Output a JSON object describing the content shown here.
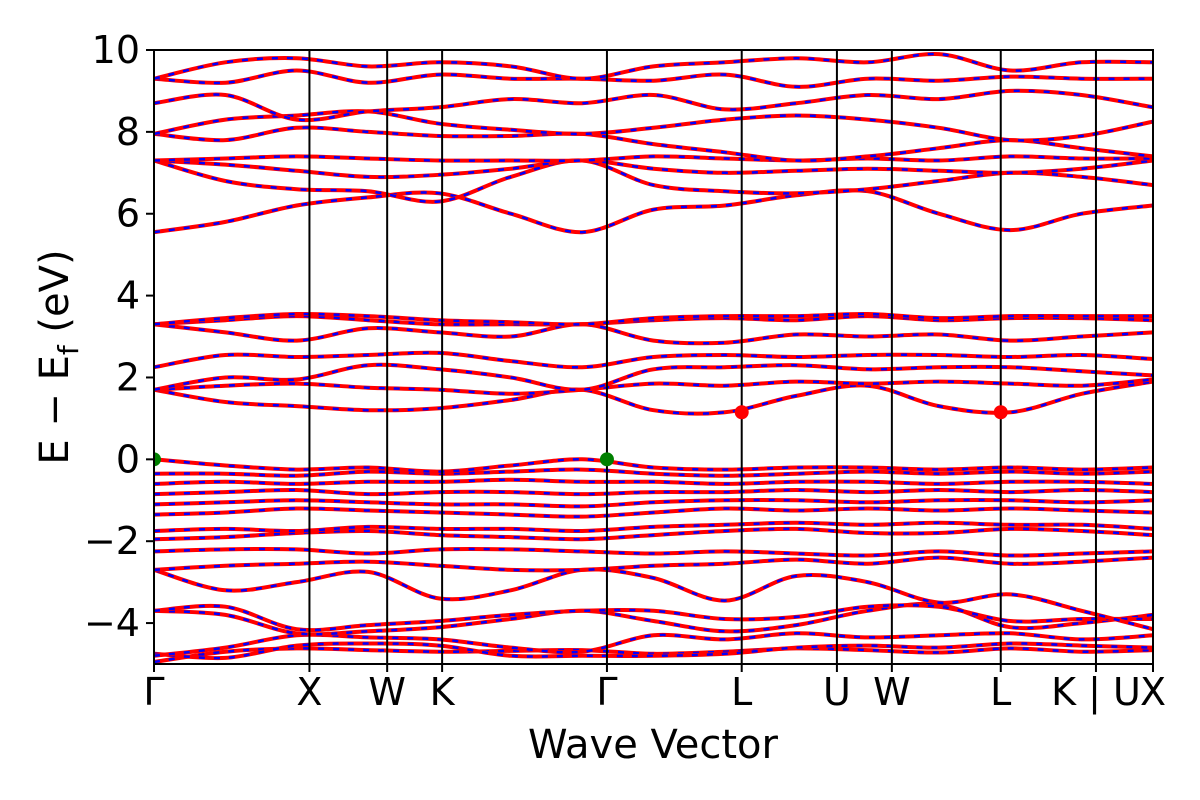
{
  "chart_data": {
    "type": "line",
    "title": "",
    "xlabel": "Wave Vector",
    "ylabel_parts": {
      "main": "E − E",
      "sub": "f",
      "unit": " (eV)"
    },
    "ylim": [
      -5,
      10
    ],
    "yticks": [
      -4,
      -2,
      0,
      2,
      4,
      6,
      8,
      10
    ],
    "ytick_labels": [
      "−4",
      "−2",
      "0",
      "2",
      "4",
      "6",
      "8",
      "10"
    ],
    "xlim": [
      0,
      1
    ],
    "high_symmetry_points": [
      {
        "label": "Γ",
        "x": 0.0
      },
      {
        "label": "X",
        "x": 0.1556
      },
      {
        "label": "W",
        "x": 0.2334
      },
      {
        "label": "K",
        "x": 0.2884
      },
      {
        "label": "Γ",
        "x": 0.4534
      },
      {
        "label": "L",
        "x": 0.5883
      },
      {
        "label": "U",
        "x": 0.6836
      },
      {
        "label": "W",
        "x": 0.7386
      },
      {
        "label": "L",
        "x": 0.8476
      },
      {
        "label": "K | U",
        "x": 0.9429
      },
      {
        "label": "X",
        "x": 1.0
      }
    ],
    "series": [
      {
        "color": "#ff0000",
        "style": "solid"
      },
      {
        "color": "#0000ff",
        "style": "dashed"
      }
    ],
    "markers": [
      {
        "x": 0.0,
        "y": 0.0,
        "color": "#008000"
      },
      {
        "x": 0.4534,
        "y": 0.0,
        "color": "#008000"
      },
      {
        "x": 0.5883,
        "y": 1.15,
        "color": "#ff0000"
      },
      {
        "x": 0.8476,
        "y": 1.15,
        "color": "#ff0000"
      }
    ],
    "bands": [
      [
        -4.95,
        -4.7,
        -4.62,
        -4.66,
        -4.7,
        -4.68,
        -4.66,
        -4.75,
        -4.7,
        -4.62,
        -4.66,
        -4.72,
        -4.62,
        -4.7,
        -4.66
      ],
      [
        -4.75,
        -4.85,
        -4.55,
        -4.5,
        -4.55,
        -4.8,
        -4.8,
        -4.8,
        -4.75,
        -4.6,
        -4.55,
        -4.6,
        -4.5,
        -4.55,
        -4.6
      ],
      [
        -4.8,
        -4.6,
        -4.3,
        -4.35,
        -4.4,
        -4.6,
        -4.7,
        -4.3,
        -4.4,
        -4.25,
        -4.35,
        -4.3,
        -4.25,
        -4.4,
        -4.3
      ],
      [
        -3.7,
        -3.8,
        -4.25,
        -4.2,
        -4.1,
        -3.9,
        -3.7,
        -3.95,
        -4.2,
        -4.05,
        -3.7,
        -3.55,
        -4.1,
        -4.0,
        -3.8
      ],
      [
        -3.7,
        -3.6,
        -4.15,
        -4.05,
        -3.95,
        -3.8,
        -3.7,
        -3.7,
        -3.9,
        -3.85,
        -3.6,
        -3.6,
        -3.95,
        -3.9,
        -3.9
      ],
      [
        -2.7,
        -3.2,
        -3.0,
        -2.75,
        -3.4,
        -3.2,
        -2.7,
        -2.9,
        -3.45,
        -2.85,
        -3.0,
        -3.5,
        -3.3,
        -3.7,
        -4.15
      ],
      [
        -2.7,
        -2.6,
        -2.55,
        -2.5,
        -2.6,
        -2.7,
        -2.7,
        -2.6,
        -2.55,
        -2.45,
        -2.55,
        -2.4,
        -2.55,
        -2.5,
        -2.4
      ],
      [
        -2.25,
        -2.2,
        -2.2,
        -2.3,
        -2.2,
        -2.2,
        -2.25,
        -2.3,
        -2.25,
        -2.3,
        -2.35,
        -2.25,
        -2.35,
        -2.3,
        -2.25
      ],
      [
        -1.95,
        -1.9,
        -1.8,
        -1.75,
        -1.85,
        -1.9,
        -1.95,
        -1.85,
        -1.75,
        -1.7,
        -1.8,
        -1.8,
        -1.7,
        -1.75,
        -1.85
      ],
      [
        -1.75,
        -1.7,
        -1.75,
        -1.65,
        -1.7,
        -1.7,
        -1.75,
        -1.65,
        -1.6,
        -1.55,
        -1.6,
        -1.55,
        -1.6,
        -1.6,
        -1.7
      ],
      [
        -1.35,
        -1.3,
        -1.2,
        -1.25,
        -1.3,
        -1.35,
        -1.4,
        -1.3,
        -1.2,
        -1.25,
        -1.2,
        -1.25,
        -1.2,
        -1.25,
        -1.3
      ],
      [
        -1.1,
        -1.05,
        -1.0,
        -1.05,
        -1.1,
        -1.1,
        -1.15,
        -1.05,
        -1.0,
        -1.0,
        -1.05,
        -1.0,
        -1.0,
        -1.05,
        -1.0
      ],
      [
        -0.85,
        -0.8,
        -0.75,
        -0.85,
        -0.8,
        -0.8,
        -0.85,
        -0.8,
        -0.8,
        -0.75,
        -0.8,
        -0.75,
        -0.8,
        -0.75,
        -0.8
      ],
      [
        -0.6,
        -0.55,
        -0.6,
        -0.55,
        -0.55,
        -0.5,
        -0.55,
        -0.55,
        -0.6,
        -0.55,
        -0.55,
        -0.6,
        -0.55,
        -0.55,
        -0.6
      ],
      [
        -0.35,
        -0.35,
        -0.4,
        -0.3,
        -0.35,
        -0.3,
        -0.25,
        -0.35,
        -0.4,
        -0.35,
        -0.3,
        -0.35,
        -0.3,
        -0.35,
        -0.3
      ],
      [
        0.0,
        -0.15,
        -0.25,
        -0.2,
        -0.3,
        -0.15,
        0.0,
        -0.2,
        -0.25,
        -0.2,
        -0.2,
        -0.25,
        -0.2,
        -0.25,
        -0.2
      ],
      [
        1.7,
        1.4,
        1.3,
        1.2,
        1.25,
        1.45,
        1.7,
        1.2,
        1.15,
        1.55,
        1.8,
        1.3,
        1.15,
        1.6,
        1.9
      ],
      [
        1.7,
        1.8,
        1.85,
        1.75,
        1.7,
        1.6,
        1.7,
        1.85,
        1.8,
        1.9,
        1.85,
        1.9,
        1.85,
        1.8,
        1.95
      ],
      [
        1.7,
        2.0,
        1.95,
        2.3,
        2.2,
        2.0,
        1.7,
        2.2,
        2.25,
        2.3,
        2.2,
        2.25,
        2.25,
        2.15,
        2.05
      ],
      [
        2.25,
        2.55,
        2.5,
        2.55,
        2.6,
        2.4,
        2.25,
        2.5,
        2.55,
        2.5,
        2.55,
        2.55,
        2.5,
        2.55,
        2.45
      ],
      [
        3.3,
        3.1,
        2.9,
        3.2,
        3.1,
        3.0,
        3.3,
        2.9,
        2.85,
        3.05,
        3.0,
        3.05,
        2.9,
        3.0,
        3.1
      ],
      [
        3.3,
        3.4,
        3.5,
        3.4,
        3.3,
        3.3,
        3.3,
        3.4,
        3.45,
        3.4,
        3.5,
        3.4,
        3.45,
        3.45,
        3.4
      ],
      [
        3.3,
        3.45,
        3.55,
        3.5,
        3.4,
        3.35,
        3.3,
        3.45,
        3.5,
        3.5,
        3.55,
        3.45,
        3.5,
        3.5,
        3.5
      ],
      [
        5.55,
        5.8,
        6.2,
        6.4,
        6.5,
        6.0,
        5.55,
        6.1,
        6.2,
        6.45,
        6.55,
        6.0,
        5.6,
        6.0,
        6.2
      ],
      [
        7.3,
        6.8,
        6.6,
        6.55,
        6.3,
        6.9,
        7.3,
        6.7,
        6.55,
        6.5,
        6.6,
        6.8,
        7.0,
        6.9,
        6.7
      ],
      [
        7.3,
        7.2,
        7.05,
        6.9,
        6.95,
        7.1,
        7.3,
        7.1,
        7.0,
        7.05,
        7.1,
        7.05,
        7.0,
        7.1,
        7.3
      ],
      [
        7.3,
        7.35,
        7.4,
        7.35,
        7.3,
        7.3,
        7.3,
        7.4,
        7.35,
        7.3,
        7.35,
        7.3,
        7.4,
        7.35,
        7.35
      ],
      [
        7.95,
        7.8,
        8.1,
        8.0,
        7.9,
        7.9,
        7.95,
        7.7,
        7.5,
        7.3,
        7.4,
        7.6,
        7.8,
        7.6,
        7.4
      ],
      [
        7.95,
        8.3,
        8.4,
        8.5,
        8.2,
        8.05,
        7.95,
        8.1,
        8.3,
        8.4,
        8.3,
        8.1,
        7.8,
        7.9,
        8.25
      ],
      [
        8.7,
        8.9,
        8.3,
        8.5,
        8.6,
        8.8,
        8.7,
        8.9,
        8.55,
        8.7,
        8.9,
        8.8,
        9.0,
        8.9,
        8.6
      ],
      [
        9.3,
        9.2,
        9.5,
        9.2,
        9.4,
        9.3,
        9.3,
        9.25,
        9.4,
        9.1,
        9.3,
        9.25,
        9.35,
        9.3,
        9.3
      ],
      [
        9.3,
        9.7,
        9.8,
        9.6,
        9.7,
        9.6,
        9.3,
        9.6,
        9.7,
        9.8,
        9.7,
        9.9,
        9.5,
        9.7,
        9.7
      ]
    ]
  }
}
